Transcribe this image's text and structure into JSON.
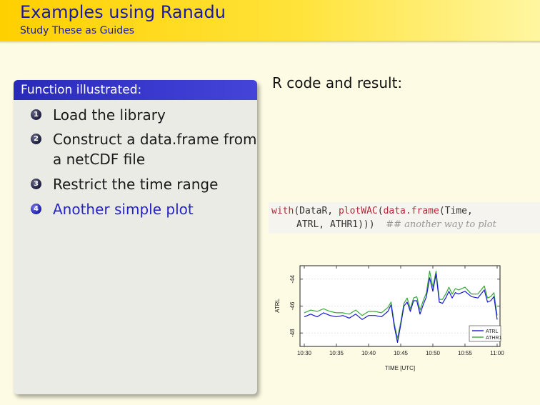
{
  "header": {
    "title": "Examples using Ranadu",
    "subtitle": "Study These as Guides"
  },
  "block": {
    "title": "Function illustrated:",
    "items": [
      {
        "num": "1",
        "lines": [
          "Load the library"
        ]
      },
      {
        "num": "2",
        "lines": [
          "Construct a data.frame from",
          "a netCDF file"
        ]
      },
      {
        "num": "3",
        "lines": [
          "Restrict the time range"
        ]
      },
      {
        "num": "4",
        "lines": [
          "Another simple plot"
        ],
        "active": true
      }
    ]
  },
  "right": {
    "heading": "R code and result:"
  },
  "code": {
    "line1": {
      "fn1": "with",
      "a": "(DataR, ",
      "fn2": "plotWAC",
      "b": "(",
      "fn3": "data.frame",
      "c": "(Time,"
    },
    "line2": {
      "a": "ATRL, ATHR1)))",
      "comment": "## another way to plot"
    }
  },
  "colors": {
    "header_gradient_start": "#ffd000",
    "accent_blue": "#2424c8",
    "block_title": "#2a2ab8",
    "code_function": "#b22a38",
    "series_atrl": "#1a1acd",
    "series_athr1": "#3aa63a"
  },
  "chart_data": {
    "type": "line",
    "xlabel": "TIME [UTC]",
    "ylabel": "ATRL",
    "x_tick_labels": [
      "10:30",
      "10:35",
      "10:40",
      "10:45",
      "10:50",
      "10:55",
      "11:00"
    ],
    "x_tick_minutes": [
      30,
      35,
      40,
      45,
      50,
      55,
      60
    ],
    "xlim": [
      30,
      60
    ],
    "y_ticks": [
      -44,
      -46,
      -48
    ],
    "ylim": [
      -49.0,
      -43.0
    ],
    "legend_position": "bottom-right",
    "series": [
      {
        "name": "ATRL",
        "color": "#1a1acd",
        "x": [
          30,
          31,
          32,
          33,
          34,
          35,
          36,
          37,
          38,
          39,
          40,
          41,
          42,
          43,
          43.5,
          44,
          44.5,
          45,
          45.5,
          46,
          46.5,
          47,
          47.5,
          48,
          48.5,
          49,
          49.5,
          50,
          50.5,
          51,
          51.5,
          52,
          52.5,
          53,
          53.5,
          54,
          55,
          56,
          57,
          58,
          58.5,
          59,
          59.5,
          60
        ],
        "values": [
          -46.8,
          -46.6,
          -46.8,
          -46.5,
          -46.7,
          -46.8,
          -46.7,
          -46.9,
          -46.6,
          -47.0,
          -46.7,
          -46.7,
          -46.8,
          -46.4,
          -45.9,
          -47.5,
          -48.7,
          -47.4,
          -46.0,
          -45.7,
          -46.4,
          -45.6,
          -45.6,
          -46.6,
          -45.9,
          -45.3,
          -43.9,
          -44.9,
          -43.6,
          -45.7,
          -45.8,
          -45.4,
          -44.9,
          -45.4,
          -45.0,
          -45.1,
          -44.9,
          -45.3,
          -45.4,
          -44.8,
          -45.7,
          -45.6,
          -45.3,
          -47.0
        ]
      },
      {
        "name": "ATHR1",
        "color": "#3aa63a",
        "x": [
          30,
          31,
          32,
          33,
          34,
          35,
          36,
          37,
          38,
          39,
          40,
          41,
          42,
          43,
          43.5,
          44,
          44.5,
          45,
          45.5,
          46,
          46.5,
          47,
          47.5,
          48,
          48.5,
          49,
          49.5,
          50,
          50.5,
          51,
          51.5,
          52,
          52.5,
          53,
          53.5,
          54,
          55,
          56,
          57,
          58,
          58.5,
          59,
          59.5,
          60
        ],
        "values": [
          -46.5,
          -46.3,
          -46.4,
          -46.2,
          -46.4,
          -46.5,
          -46.5,
          -46.6,
          -46.3,
          -46.7,
          -46.4,
          -46.4,
          -46.5,
          -46.1,
          -45.7,
          -47.3,
          -48.4,
          -47.2,
          -45.8,
          -45.4,
          -46.2,
          -45.4,
          -45.3,
          -46.3,
          -45.6,
          -45.0,
          -43.4,
          -44.6,
          -43.4,
          -45.5,
          -45.5,
          -45.1,
          -44.6,
          -45.1,
          -44.7,
          -44.8,
          -44.6,
          -45.1,
          -45.1,
          -44.5,
          -45.4,
          -45.3,
          -45.0,
          -46.7
        ]
      }
    ]
  }
}
